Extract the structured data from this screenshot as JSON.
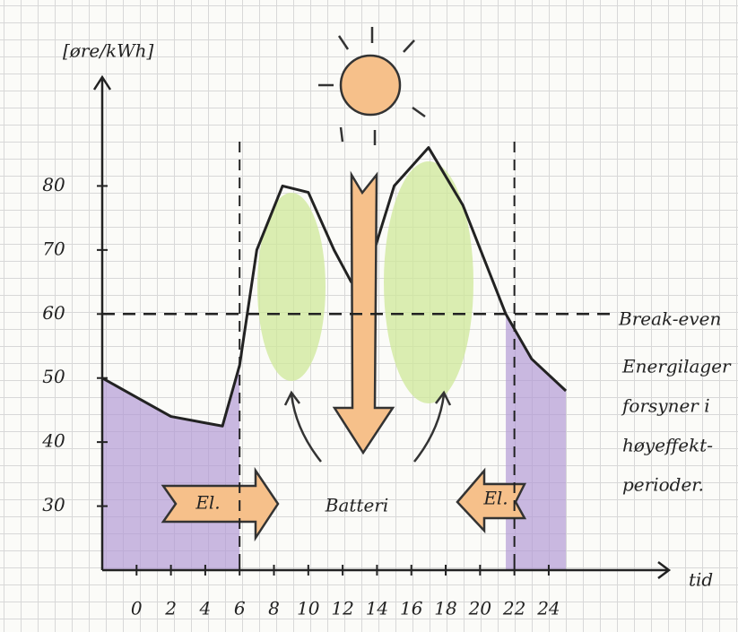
{
  "chart_data": {
    "type": "line",
    "y_label": "[øre/kWh]",
    "x_label": "tid",
    "x": [
      -2,
      0,
      2,
      4,
      5,
      6,
      7,
      8.5,
      10,
      11.5,
      12.5,
      13.5,
      15,
      17,
      19,
      21.5,
      23,
      25
    ],
    "series": [
      {
        "color": "#222222",
        "values": [
          50,
          47,
          44,
          43,
          42.5,
          52,
          70,
          80,
          79,
          70,
          65,
          67,
          80,
          86,
          77,
          60,
          53,
          48
        ]
      }
    ],
    "xlim": [
      -2,
      31
    ],
    "ylim": [
      20,
      97
    ],
    "xticks": [
      0,
      2,
      4,
      6,
      8,
      10,
      12,
      14,
      16,
      18,
      20,
      22,
      24
    ],
    "yticks": [
      30,
      40,
      50,
      60,
      70,
      80
    ],
    "break_even": 60,
    "vlines": [
      6,
      22
    ],
    "annotations": {
      "break_even": "Break-even",
      "note": [
        "Energilager",
        "forsyner i",
        "høyeffekt-",
        "perioder."
      ],
      "el_left": "El.",
      "battery": "Batteri",
      "el_right": "El."
    }
  }
}
